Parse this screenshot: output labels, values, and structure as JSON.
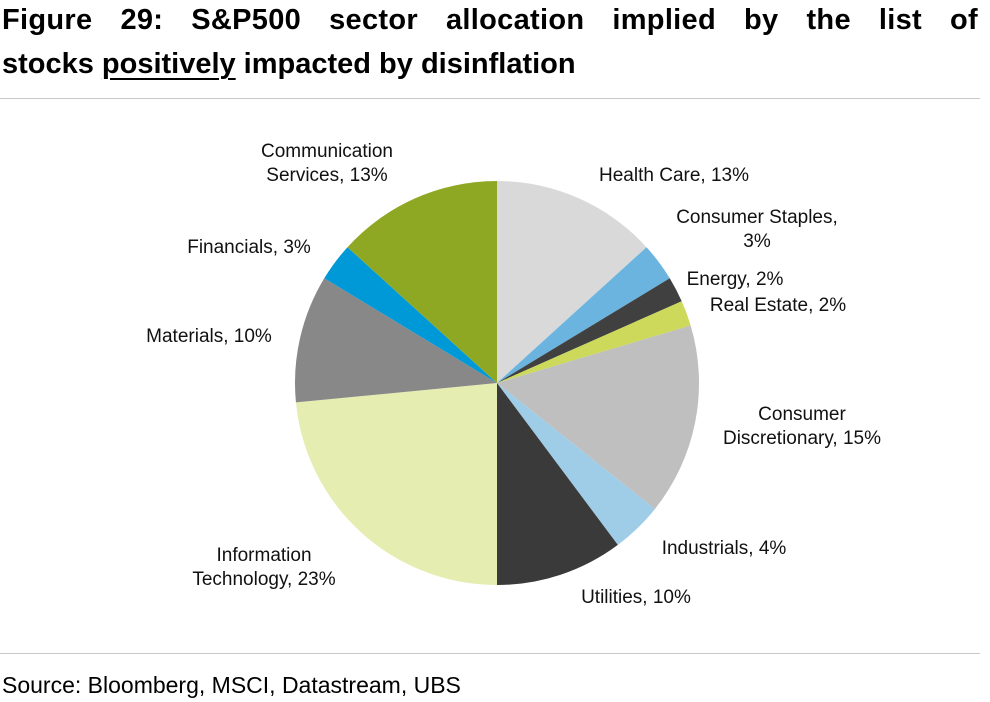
{
  "chart_data": {
    "type": "pie",
    "title": {
      "line1": "Figure 29: S&P500 sector allocation implied by the list of",
      "line2": [
        "stocks",
        "positively",
        "impacted by disinflation"
      ]
    },
    "labels": [
      [
        "Health Care, 13%"
      ],
      [
        "Consumer Staples,",
        "3%"
      ],
      [
        "Energy, 2%"
      ],
      [
        "Real Estate, 2%"
      ],
      [
        "Consumer",
        "Discretionary, 15%"
      ],
      [
        "Industrials, 4%"
      ],
      [
        "Utilities, 10%"
      ],
      [
        "Information",
        "Technology, 23%"
      ],
      [
        "Materials, 10%"
      ],
      [
        "Financials, 3%"
      ],
      [
        "Communication",
        "Services, 13%"
      ]
    ],
    "values": [
      13,
      3,
      2,
      2,
      15,
      4,
      10,
      23,
      10,
      3,
      13
    ],
    "colors": [
      "#d9d9d9",
      "#6cb4e0",
      "#404040",
      "#ccd95a",
      "#bfbfbf",
      "#9fcce6",
      "#3a3a3a",
      "#e6edb0",
      "#888888",
      "#0099d8",
      "#8fa823"
    ],
    "source": "Source: Bloomberg, MSCI, Datastream, UBS"
  }
}
